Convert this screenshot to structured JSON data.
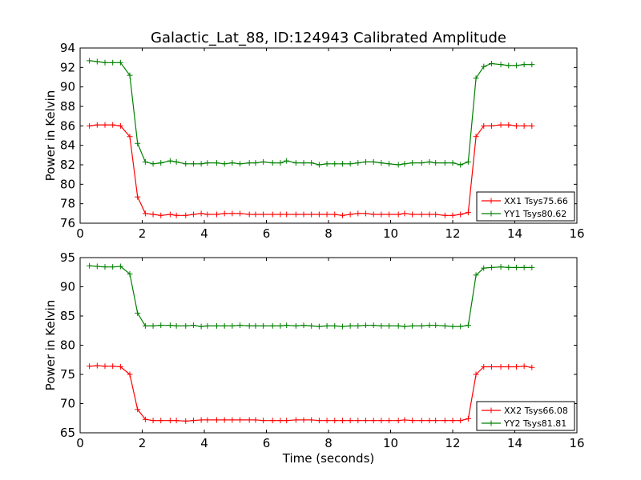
{
  "title": "Galactic_Lat_88, ID:124943 Calibrated Amplitude",
  "colors": {
    "xx": "#ff0000",
    "yy": "#008000"
  },
  "chart_data": [
    {
      "type": "line",
      "xlabel": "",
      "ylabel": "Power in Kelvin",
      "xlim": [
        0,
        16
      ],
      "ylim": [
        76,
        94
      ],
      "xticks": [
        0,
        2,
        4,
        6,
        8,
        10,
        12,
        14,
        16
      ],
      "yticks": [
        76,
        78,
        80,
        82,
        84,
        86,
        88,
        90,
        92,
        94
      ],
      "legend_position": "lower-right",
      "grid": false,
      "x": [
        0.3,
        0.55,
        0.8,
        1.05,
        1.3,
        1.6,
        1.85,
        2.1,
        2.35,
        2.6,
        2.9,
        3.1,
        3.4,
        3.65,
        3.9,
        4.1,
        4.4,
        4.65,
        4.9,
        5.15,
        5.45,
        5.65,
        5.9,
        6.2,
        6.45,
        6.65,
        6.95,
        7.2,
        7.45,
        7.7,
        7.95,
        8.2,
        8.45,
        8.7,
        8.95,
        9.2,
        9.45,
        9.7,
        9.95,
        10.25,
        10.45,
        10.7,
        11.0,
        11.25,
        11.45,
        11.75,
        12.0,
        12.25,
        12.5,
        12.75,
        13.0,
        13.25,
        13.55,
        13.8,
        14.05,
        14.3,
        14.55
      ],
      "series": [
        {
          "name": "XX1 Tsys75.66",
          "color_key": "xx",
          "values": [
            86.0,
            86.1,
            86.1,
            86.1,
            86.0,
            84.9,
            78.7,
            77.0,
            76.9,
            76.8,
            76.9,
            76.8,
            76.8,
            76.9,
            77.0,
            76.9,
            76.9,
            77.0,
            77.0,
            77.0,
            76.9,
            76.9,
            76.9,
            76.9,
            76.9,
            76.9,
            76.9,
            76.9,
            76.9,
            76.9,
            76.9,
            76.9,
            76.8,
            76.9,
            77.0,
            77.0,
            76.9,
            76.9,
            76.9,
            76.9,
            77.0,
            76.9,
            76.9,
            76.9,
            76.9,
            76.8,
            76.8,
            76.9,
            77.1,
            84.9,
            86.0,
            86.0,
            86.1,
            86.1,
            86.0,
            86.0,
            86.0
          ]
        },
        {
          "name": "YY1 Tsys80.62",
          "color_key": "yy",
          "values": [
            92.7,
            92.6,
            92.5,
            92.5,
            92.5,
            91.2,
            84.2,
            82.3,
            82.1,
            82.2,
            82.4,
            82.3,
            82.1,
            82.1,
            82.1,
            82.2,
            82.2,
            82.1,
            82.2,
            82.1,
            82.2,
            82.2,
            82.3,
            82.2,
            82.2,
            82.4,
            82.2,
            82.2,
            82.2,
            82.0,
            82.1,
            82.1,
            82.1,
            82.1,
            82.2,
            82.3,
            82.3,
            82.2,
            82.1,
            82.0,
            82.1,
            82.2,
            82.2,
            82.3,
            82.2,
            82.2,
            82.2,
            82.0,
            82.3,
            90.9,
            92.1,
            92.4,
            92.3,
            92.2,
            92.2,
            92.3,
            92.3
          ]
        }
      ]
    },
    {
      "type": "line",
      "xlabel": "Time (seconds)",
      "ylabel": "Power in Kelvin",
      "xlim": [
        0,
        16
      ],
      "ylim": [
        65,
        95
      ],
      "xticks": [
        0,
        2,
        4,
        6,
        8,
        10,
        12,
        14,
        16
      ],
      "yticks": [
        65,
        70,
        75,
        80,
        85,
        90,
        95
      ],
      "legend_position": "lower-right",
      "grid": false,
      "x": [
        0.3,
        0.55,
        0.8,
        1.05,
        1.3,
        1.6,
        1.85,
        2.1,
        2.35,
        2.6,
        2.9,
        3.1,
        3.4,
        3.65,
        3.9,
        4.1,
        4.4,
        4.65,
        4.9,
        5.15,
        5.45,
        5.65,
        5.9,
        6.2,
        6.45,
        6.65,
        6.95,
        7.2,
        7.45,
        7.7,
        7.95,
        8.2,
        8.45,
        8.7,
        8.95,
        9.2,
        9.45,
        9.7,
        9.95,
        10.25,
        10.45,
        10.7,
        11.0,
        11.25,
        11.45,
        11.75,
        12.0,
        12.25,
        12.5,
        12.75,
        13.0,
        13.25,
        13.55,
        13.8,
        14.05,
        14.3,
        14.55
      ],
      "series": [
        {
          "name": "XX2 Tsys66.08",
          "color_key": "xx",
          "values": [
            76.4,
            76.5,
            76.4,
            76.4,
            76.3,
            75.0,
            69.0,
            67.3,
            67.1,
            67.1,
            67.1,
            67.1,
            67.0,
            67.1,
            67.2,
            67.2,
            67.2,
            67.2,
            67.2,
            67.2,
            67.2,
            67.2,
            67.1,
            67.1,
            67.1,
            67.1,
            67.2,
            67.2,
            67.2,
            67.1,
            67.1,
            67.1,
            67.1,
            67.1,
            67.1,
            67.1,
            67.1,
            67.1,
            67.1,
            67.1,
            67.2,
            67.1,
            67.1,
            67.1,
            67.1,
            67.1,
            67.1,
            67.1,
            67.4,
            75.0,
            76.3,
            76.3,
            76.3,
            76.3,
            76.3,
            76.4,
            76.2
          ]
        },
        {
          "name": "YY2 Tsys81.81",
          "color_key": "yy",
          "values": [
            93.6,
            93.5,
            93.4,
            93.4,
            93.5,
            92.2,
            85.5,
            83.3,
            83.3,
            83.4,
            83.4,
            83.3,
            83.3,
            83.4,
            83.2,
            83.3,
            83.3,
            83.3,
            83.3,
            83.4,
            83.3,
            83.3,
            83.3,
            83.3,
            83.3,
            83.4,
            83.3,
            83.4,
            83.3,
            83.2,
            83.3,
            83.3,
            83.2,
            83.3,
            83.3,
            83.4,
            83.4,
            83.3,
            83.3,
            83.3,
            83.2,
            83.3,
            83.3,
            83.4,
            83.4,
            83.3,
            83.2,
            83.2,
            83.4,
            92.0,
            93.2,
            93.3,
            93.4,
            93.3,
            93.3,
            93.3,
            93.3
          ]
        }
      ]
    }
  ]
}
